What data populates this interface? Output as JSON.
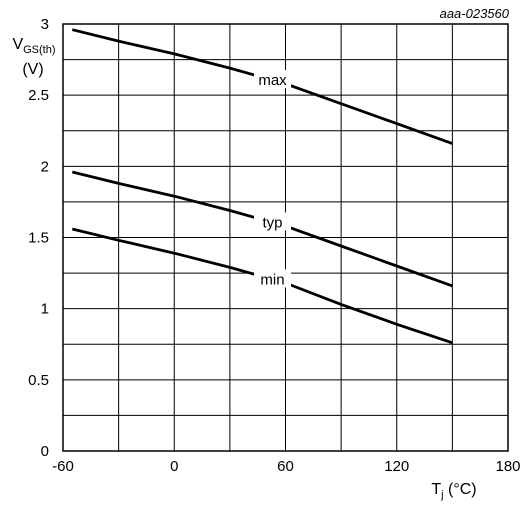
{
  "figure_ref": "aaa-023560",
  "chart_data": {
    "type": "line",
    "xlabel": {
      "main": "T",
      "sub": "j",
      "unit": " (°C)"
    },
    "ylabel": {
      "main": "V",
      "sub": "GS(th)",
      "unit": "(V)"
    },
    "xlim": [
      -60,
      180
    ],
    "ylim": [
      0,
      3
    ],
    "x_ticks": [
      -60,
      0,
      60,
      120,
      180
    ],
    "y_ticks": [
      0,
      0.5,
      1,
      1.5,
      2,
      2.5,
      3
    ],
    "x_tick_labels": [
      "-60",
      "0",
      "60",
      "120",
      "180"
    ],
    "y_tick_labels": [
      "0",
      "0.5",
      "1",
      "1.5",
      "2",
      "2.5",
      "3"
    ],
    "x_grid_step": 30,
    "y_grid_step": 0.25,
    "grid": true,
    "series": [
      {
        "name": "max",
        "x": [
          -55,
          -30,
          0,
          30,
          60,
          90,
          120,
          150
        ],
        "y": [
          2.96,
          2.88,
          2.79,
          2.69,
          2.58,
          2.44,
          2.3,
          2.16
        ],
        "label_at_x": 53
      },
      {
        "name": "typ",
        "x": [
          -55,
          -30,
          0,
          30,
          60,
          90,
          120,
          150
        ],
        "y": [
          1.96,
          1.88,
          1.79,
          1.69,
          1.58,
          1.44,
          1.3,
          1.16
        ],
        "label_at_x": 53
      },
      {
        "name": "min",
        "x": [
          -55,
          -30,
          0,
          30,
          60,
          90,
          120,
          150
        ],
        "y": [
          1.56,
          1.48,
          1.39,
          1.29,
          1.18,
          1.03,
          0.89,
          0.76
        ],
        "label_at_x": 53
      }
    ]
  }
}
